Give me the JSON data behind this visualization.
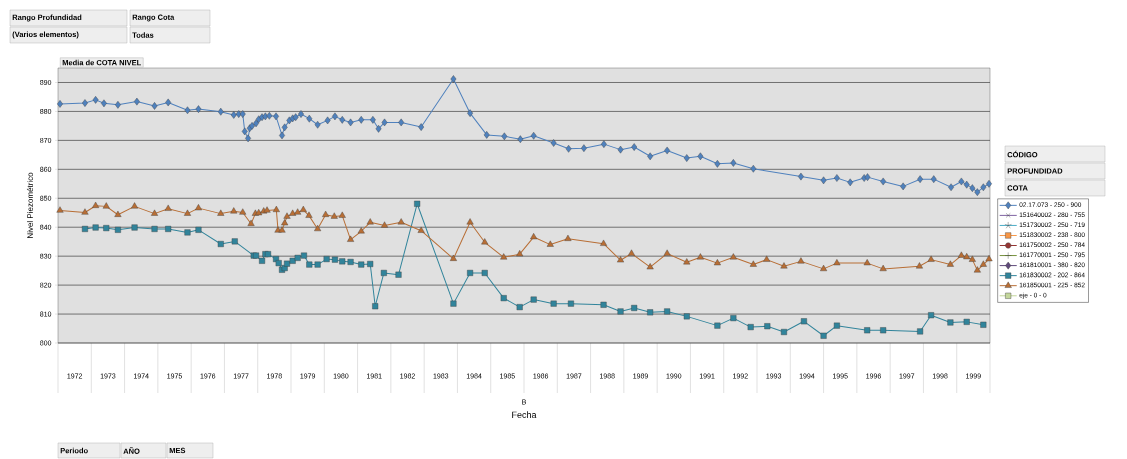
{
  "chart_data": {
    "type": "line",
    "title": "Media de COTA NIVEL",
    "xlabel": "Fecha",
    "ylabel": "Nivel Piezométrico",
    "annotations": [
      "Rango Profundidad",
      "Rango Cota",
      "(Varios elementos)",
      "Todas",
      "CÓDIGO",
      "PROFUNDIDAD",
      "COTA",
      "Periodo",
      "AÑO",
      "MES",
      "B"
    ],
    "xlim": [
      1972,
      2000
    ],
    "ylim": [
      800,
      895
    ],
    "xticks": [
      {
        "value": 1972.5,
        "label": "1972"
      },
      {
        "value": 1973.5,
        "label": "1973"
      },
      {
        "value": 1974.5,
        "label": "1974"
      },
      {
        "value": 1975.5,
        "label": "1975"
      },
      {
        "value": 1976.5,
        "label": "1976"
      },
      {
        "value": 1977.5,
        "label": "1977"
      },
      {
        "value": 1978.5,
        "label": "1978"
      },
      {
        "value": 1979.5,
        "label": "1979"
      },
      {
        "value": 1980.5,
        "label": "1980"
      },
      {
        "value": 1981.5,
        "label": "1981"
      },
      {
        "value": 1982.5,
        "label": "1982"
      },
      {
        "value": 1983.5,
        "label": "1983"
      },
      {
        "value": 1984.5,
        "label": "1984"
      },
      {
        "value": 1985.5,
        "label": "1985"
      },
      {
        "value": 1986.5,
        "label": "1986"
      },
      {
        "value": 1987.5,
        "label": "1987"
      },
      {
        "value": 1988.5,
        "label": "1988"
      },
      {
        "value": 1989.5,
        "label": "1989"
      },
      {
        "value": 1990.5,
        "label": "1990"
      },
      {
        "value": 1991.5,
        "label": "1991"
      },
      {
        "value": 1992.5,
        "label": "1992"
      },
      {
        "value": 1993.5,
        "label": "1993"
      },
      {
        "value": 1994.5,
        "label": "1994"
      },
      {
        "value": 1995.5,
        "label": "1995"
      },
      {
        "value": 1996.5,
        "label": "1996"
      },
      {
        "value": 1997.5,
        "label": "1997"
      },
      {
        "value": 1998.5,
        "label": "1998"
      },
      {
        "value": 1999.5,
        "label": "1999"
      }
    ],
    "yticks": [
      800,
      810,
      820,
      830,
      840,
      850,
      860,
      870,
      880,
      890
    ],
    "grid": "y",
    "legend": "right",
    "series": [
      {
        "name": "02.17.073 - 250 - 900",
        "color": "#4f81bd",
        "marker": "diamond",
        "x": [
          1972.06,
          1972.81,
          1973.13,
          1973.38,
          1973.8,
          1974.37,
          1974.9,
          1975.31,
          1975.89,
          1976.22,
          1976.89,
          1977.28,
          1977.43,
          1977.55,
          1977.61,
          1977.71,
          1977.76,
          1977.83,
          1977.95,
          1978.03,
          1978.13,
          1978.23,
          1978.35,
          1978.55,
          1978.73,
          1978.81,
          1978.95,
          1979.05,
          1979.14,
          1979.3,
          1979.55,
          1979.8,
          1980.1,
          1980.32,
          1980.54,
          1980.79,
          1981.11,
          1981.46,
          1981.63,
          1981.81,
          1982.31,
          1982.91,
          1983.88,
          1984.38,
          1984.88,
          1985.41,
          1985.89,
          1986.29,
          1986.89,
          1987.34,
          1987.8,
          1988.4,
          1988.9,
          1989.31,
          1989.79,
          1990.3,
          1990.89,
          1991.3,
          1991.81,
          1992.29,
          1992.89,
          1994.32,
          1995.0,
          1995.4,
          1995.8,
          1996.22,
          1996.32,
          1996.79,
          1997.39,
          1997.9,
          1998.31,
          1998.83,
          1999.14,
          1999.3,
          1999.47,
          1999.62,
          1999.8,
          1999.97
        ],
        "values": [
          882.6,
          882.9,
          884.0,
          882.8,
          882.3,
          883.4,
          881.9,
          883.1,
          880.4,
          880.8,
          879.9,
          878.8,
          879.1,
          879.1,
          873.1,
          870.7,
          874.2,
          875.0,
          875.9,
          877.3,
          878.0,
          878.3,
          878.5,
          878.3,
          871.7,
          874.5,
          876.9,
          877.6,
          878.0,
          879.1,
          877.5,
          875.4,
          876.9,
          878.3,
          877.1,
          876.2,
          877.1,
          877.1,
          874.0,
          876.2,
          876.2,
          874.6,
          891.2,
          879.4,
          871.9,
          871.4,
          870.4,
          871.6,
          869.1,
          867.1,
          867.3,
          868.7,
          866.8,
          867.7,
          864.5,
          866.5,
          863.9,
          864.5,
          861.9,
          862.2,
          860.2,
          857.5,
          856.2,
          857.0,
          855.5,
          857.0,
          857.3,
          855.8,
          854.1,
          856.6,
          856.6,
          853.8,
          855.8,
          854.7,
          853.5,
          852.1,
          853.8,
          855.0
        ]
      },
      {
        "name": "151640002 - 280 - 755",
        "color": "#7f63a2",
        "marker": "cross"
      },
      {
        "name": "151730002 - 250 - 719",
        "color": "#4bacc6",
        "marker": "star"
      },
      {
        "name": "151830002 - 238 - 800",
        "color": "#f79646",
        "marker": "square"
      },
      {
        "name": "161750002 - 250 - 784",
        "color": "#943634",
        "marker": "circle"
      },
      {
        "name": "161770001 - 250 - 795",
        "color": "#76923c",
        "marker": "plus"
      },
      {
        "name": "161810001 - 380 - 820",
        "color": "#5f497a",
        "marker": "diamond"
      },
      {
        "name": "161830002 - 202 - 864",
        "color": "#31849b",
        "marker": "square",
        "x": [
          1972.81,
          1973.13,
          1973.45,
          1973.8,
          1974.3,
          1974.9,
          1975.31,
          1975.89,
          1976.22,
          1976.89,
          1977.31,
          1977.88,
          1977.95,
          1978.13,
          1978.23,
          1978.31,
          1978.55,
          1978.63,
          1978.73,
          1978.81,
          1978.88,
          1979.05,
          1979.2,
          1979.39,
          1979.55,
          1979.8,
          1980.07,
          1980.32,
          1980.54,
          1980.79,
          1981.11,
          1981.38,
          1981.53,
          1981.79,
          1982.23,
          1982.79,
          1983.88,
          1984.38,
          1984.82,
          1985.39,
          1985.87,
          1986.29,
          1986.89,
          1987.41,
          1988.39,
          1988.9,
          1989.31,
          1989.79,
          1990.3,
          1990.89,
          1991.81,
          1992.29,
          1992.81,
          1993.31,
          1993.81,
          1994.41,
          1995.0,
          1995.4,
          1996.31,
          1996.79,
          1997.9,
          1998.23,
          1998.81,
          1999.3,
          1999.8
        ],
        "values": [
          839.4,
          839.9,
          839.7,
          839.1,
          839.9,
          839.4,
          839.4,
          838.2,
          839.1,
          834.2,
          835.1,
          830.2,
          830.2,
          828.4,
          830.7,
          830.7,
          829.0,
          827.6,
          825.3,
          825.9,
          827.4,
          828.4,
          829.4,
          830.2,
          827.1,
          827.1,
          829.0,
          828.8,
          828.2,
          828.0,
          827.1,
          827.3,
          812.7,
          824.2,
          823.6,
          848.1,
          813.6,
          824.2,
          824.2,
          815.5,
          812.4,
          815.0,
          813.6,
          813.6,
          813.2,
          810.9,
          812.1,
          810.6,
          810.9,
          809.2,
          806.0,
          808.6,
          805.5,
          805.8,
          803.8,
          807.5,
          802.5,
          806.0,
          804.4,
          804.4,
          804.0,
          809.6,
          807.1,
          807.3,
          806.3
        ]
      },
      {
        "name": "161850001 - 225 - 852",
        "color": "#b86e35",
        "marker": "triangle",
        "x": [
          1972.06,
          1972.81,
          1973.13,
          1973.45,
          1973.8,
          1974.3,
          1974.9,
          1975.31,
          1975.89,
          1976.22,
          1976.89,
          1977.28,
          1977.55,
          1977.8,
          1977.93,
          1978.03,
          1978.18,
          1978.28,
          1978.56,
          1978.61,
          1978.73,
          1978.81,
          1978.88,
          1979.05,
          1979.2,
          1979.37,
          1979.54,
          1979.8,
          1980.04,
          1980.3,
          1980.54,
          1980.79,
          1981.11,
          1981.38,
          1981.81,
          1982.31,
          1982.91,
          1983.88,
          1984.38,
          1984.82,
          1985.39,
          1985.87,
          1986.29,
          1986.79,
          1987.32,
          1988.39,
          1988.9,
          1989.23,
          1989.79,
          1990.3,
          1990.89,
          1991.3,
          1991.81,
          1992.29,
          1992.89,
          1993.29,
          1993.81,
          1994.32,
          1995.0,
          1995.4,
          1996.31,
          1996.79,
          1997.88,
          1998.23,
          1998.81,
          1999.14,
          1999.3,
          1999.47,
          1999.62,
          1999.8,
          1999.97
        ],
        "values": [
          845.8,
          845.1,
          847.4,
          847.2,
          844.3,
          847.2,
          844.7,
          846.4,
          844.7,
          846.6,
          844.7,
          845.5,
          845.1,
          841.2,
          844.7,
          844.9,
          845.5,
          845.8,
          846.0,
          838.9,
          838.9,
          841.4,
          843.7,
          844.7,
          845.1,
          846.0,
          844.0,
          839.4,
          844.3,
          843.7,
          844.0,
          835.7,
          838.6,
          841.7,
          840.6,
          841.7,
          838.8,
          829.1,
          841.7,
          834.8,
          829.6,
          830.7,
          836.6,
          834.0,
          836.0,
          834.3,
          828.6,
          830.9,
          826.2,
          830.9,
          827.9,
          829.6,
          827.6,
          829.6,
          827.1,
          828.8,
          826.5,
          828.2,
          825.6,
          827.6,
          827.6,
          825.6,
          826.5,
          828.8,
          827.1,
          830.2,
          829.7,
          828.8,
          825.1,
          827.1,
          829.0
        ]
      },
      {
        "name": "eje - 0 - 0",
        "color": "#c3d69b",
        "marker": "square"
      }
    ]
  }
}
